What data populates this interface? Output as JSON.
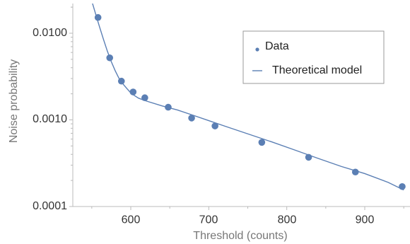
{
  "chart_data": {
    "type": "scatter",
    "xlabel": "Threshold (counts)",
    "ylabel": "Noise probability",
    "xlim": [
      520,
      950
    ],
    "ylim": [
      0.0001,
      0.02
    ],
    "y_scale": "log",
    "grid": false,
    "legend_position": "top-right",
    "x_ticks": [
      600,
      700,
      800,
      900
    ],
    "x_tick_labels": [
      "600",
      "700",
      "800",
      "900"
    ],
    "y_ticks": [
      0.0001,
      0.001,
      0.01
    ],
    "y_tick_labels": [
      "0.0001",
      "0.0010",
      "0.0100"
    ],
    "series": [
      {
        "name": "Data",
        "kind": "scatter",
        "x": [
          558,
          573,
          588,
          603,
          618,
          648,
          678,
          708,
          768,
          828,
          888,
          948
        ],
        "y": [
          0.0152,
          0.0052,
          0.0028,
          0.0021,
          0.0018,
          0.0014,
          0.00105,
          0.00085,
          0.00055,
          0.00037,
          0.00025,
          0.00017
        ]
      },
      {
        "name": "Theoretical model",
        "kind": "line",
        "x": [
          548,
          552,
          556,
          560,
          565,
          570,
          575,
          580,
          585,
          590,
          595,
          600,
          605,
          610,
          620,
          640,
          660,
          680,
          700,
          720,
          750,
          780,
          810,
          840,
          870,
          900,
          930,
          950
        ],
        "y": [
          0.027,
          0.0205,
          0.0155,
          0.0118,
          0.0085,
          0.0062,
          0.0047,
          0.0037,
          0.003,
          0.0026,
          0.0023,
          0.00205,
          0.0019,
          0.00178,
          0.00165,
          0.00145,
          0.0013,
          0.00113,
          0.00098,
          0.00085,
          0.00069,
          0.00056,
          0.00045,
          0.00036,
          0.00029,
          0.00024,
          0.00019,
          0.000155
        ]
      }
    ],
    "colors": {
      "series": "#5b7fb4",
      "axis": "#bbbbbb",
      "tick_text": "#333333",
      "axis_title": "#777777"
    }
  }
}
